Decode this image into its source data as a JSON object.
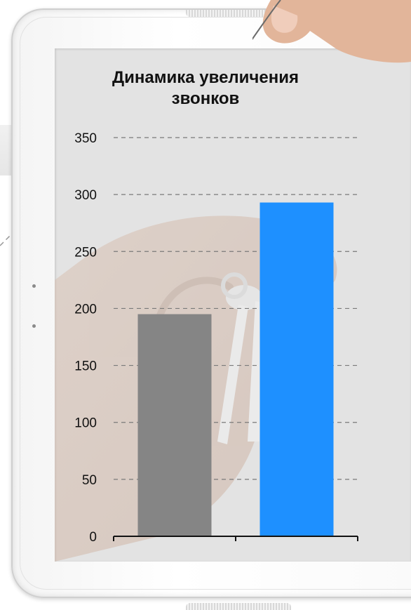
{
  "chart_data": {
    "type": "bar",
    "title": [
      "Динамика увеличения",
      "звонков"
    ],
    "categories": [
      "",
      ""
    ],
    "values": [
      195,
      293
    ],
    "bar_colors": [
      "#858585",
      "#1e90ff"
    ],
    "ylim": [
      0,
      350
    ],
    "yticks": [
      0,
      50,
      100,
      150,
      200,
      250,
      300,
      350
    ],
    "grid": true,
    "grid_style": "dashed",
    "legend": "none"
  },
  "frame": {
    "device": "tablet",
    "bezel_color": "#ffffff",
    "screen_background": "#e3e3e3"
  }
}
